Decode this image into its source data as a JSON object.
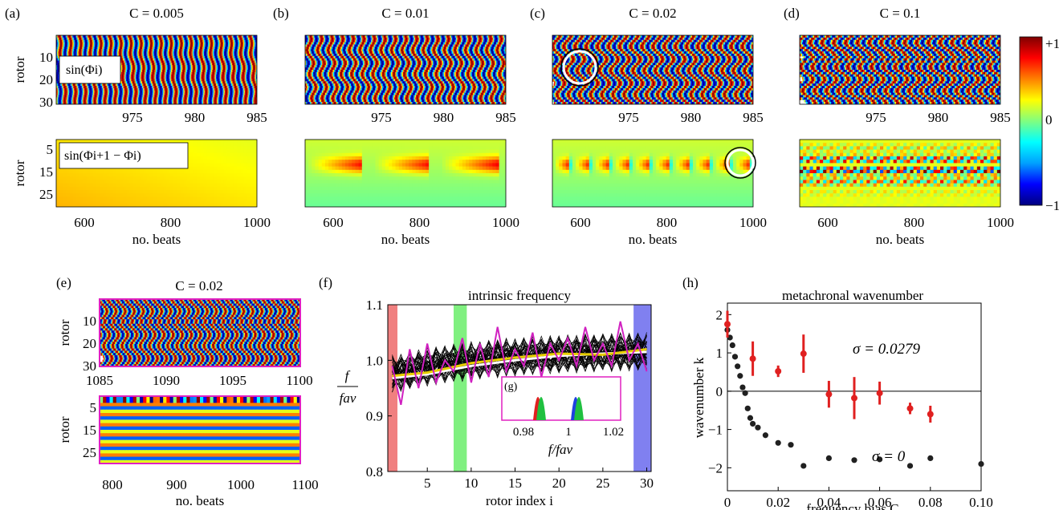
{
  "panel_labels": {
    "a": "(a)",
    "b": "(b)",
    "c": "(c)",
    "d": "(d)",
    "e": "(e)",
    "f": "(f)",
    "g": "(g)",
    "h": "(h)"
  },
  "colorbar": {
    "max_label": "+1",
    "mid_label": "0",
    "min_label": "−1",
    "stops": [
      "#00007f",
      "#0000ff",
      "#00a0ff",
      "#00ffff",
      "#80ff80",
      "#ffff00",
      "#ff8000",
      "#ff0000",
      "#7f0000"
    ]
  },
  "top_panels": [
    {
      "title": "C = 0.005",
      "coupling": 0.005,
      "upper_ylabel": "rotor",
      "lower_ylabel": "rotor",
      "upper_annotation": "sin(Φi)",
      "lower_annotation": "sin(Φi+1 − Φi)",
      "xlabel": "no. beats",
      "upper_xticks": [
        "975",
        "980",
        "985"
      ],
      "upper_yticks": [
        "10",
        "20",
        "30"
      ],
      "lower_xticks": [
        "600",
        "800",
        "1000"
      ],
      "lower_yticks": [
        "5",
        "15",
        "25"
      ]
    },
    {
      "title": "C = 0.01",
      "coupling": 0.01,
      "xlabel": "no. beats",
      "upper_xticks": [
        "975",
        "980",
        "985"
      ],
      "lower_xticks": [
        "600",
        "800",
        "1000"
      ]
    },
    {
      "title": "C = 0.02",
      "coupling": 0.02,
      "xlabel": "no. beats",
      "upper_xticks": [
        "975",
        "980",
        "985"
      ],
      "lower_xticks": [
        "600",
        "800",
        "1000"
      ]
    },
    {
      "title": "C = 0.1",
      "coupling": 0.1,
      "xlabel": "no. beats",
      "upper_xticks": [
        "975",
        "980",
        "985"
      ],
      "lower_xticks": [
        "600",
        "800",
        "1000"
      ]
    }
  ],
  "panel_e": {
    "title": "C = 0.02",
    "ylabel": "rotor",
    "xlabel": "no. beats",
    "upper_xticks": [
      "1085",
      "1090",
      "1095",
      "1100"
    ],
    "upper_yticks": [
      "10",
      "20",
      "30"
    ],
    "lower_xticks": [
      "800",
      "900",
      "1000",
      "1100"
    ],
    "lower_yticks": [
      "5",
      "15",
      "25"
    ],
    "frame_color": "#e020c0"
  },
  "panel_f": {
    "title": "intrinsic frequency",
    "xlabel": "rotor index i",
    "ylabel_num": "f",
    "ylabel_den": "fav",
    "xticks": [
      "5",
      "10",
      "15",
      "20",
      "25",
      "30"
    ],
    "yticks": [
      "0.8",
      "0.9",
      "1.0",
      "1.1"
    ],
    "highlight_colors": [
      "#f08080",
      "#80f080",
      "#8080f0"
    ]
  },
  "panel_g": {
    "label": "(g)",
    "xlabel": "f/fav",
    "xticks": [
      "0.98",
      "1",
      "1.02"
    ],
    "frame_color": "#e020c0"
  },
  "chart_data": [
    {
      "type": "heatmap",
      "panel": "a-upper",
      "title": "C = 0.005",
      "xlabel": "",
      "ylabel": "rotor",
      "xlim": [
        971,
        985
      ],
      "ylim": [
        1,
        30
      ],
      "quantity": "sin(Φi)",
      "range": [
        -1,
        1
      ]
    },
    {
      "type": "heatmap",
      "panel": "a-lower",
      "xlabel": "no. beats",
      "ylabel": "rotor",
      "xlim": [
        500,
        1000
      ],
      "ylim": [
        1,
        29
      ],
      "quantity": "sin(Φi+1 − Φi)",
      "range": [
        -1,
        1
      ]
    },
    {
      "type": "line",
      "panel": "f",
      "title": "intrinsic frequency",
      "xlabel": "rotor index i",
      "ylabel": "f/fav",
      "xlim": [
        0.5,
        30.5
      ],
      "ylim": [
        0.8,
        1.1
      ],
      "series": [
        {
          "color": "#ffffff",
          "x": [
            1,
            5,
            10,
            15,
            20,
            25,
            30
          ],
          "values": [
            0.968,
            0.975,
            0.99,
            1.0,
            1.008,
            1.012,
            1.015
          ]
        },
        {
          "color": "#e8d000",
          "x": [
            1,
            5,
            10,
            15,
            20,
            25,
            30
          ],
          "values": [
            0.972,
            0.978,
            0.995,
            1.005,
            1.012,
            1.01,
            1.02
          ]
        },
        {
          "color": "#d020c0",
          "x": [
            1,
            2,
            3,
            4,
            5,
            6,
            7,
            8,
            9,
            10,
            11,
            12,
            13,
            14,
            15,
            16,
            17,
            18,
            19,
            20,
            21,
            22,
            23,
            24,
            25,
            26,
            27,
            28,
            29,
            30
          ],
          "values": [
            0.99,
            0.92,
            1.02,
            0.95,
            1.03,
            0.96,
            1.0,
            0.98,
            1.04,
            0.96,
            1.03,
            0.97,
            1.06,
            0.98,
            1.02,
            0.99,
            1.05,
            0.97,
            1.03,
            1.0,
            1.04,
            0.99,
            1.06,
            1.0,
            1.03,
            0.99,
            1.07,
            1.0,
            1.03,
            0.98
          ]
        }
      ]
    },
    {
      "type": "scatter",
      "panel": "h",
      "title": "metachronal wavenumber",
      "xlabel": "frequency bias C",
      "ylabel": "wavenumber k",
      "xlim": [
        0,
        0.1
      ],
      "ylim": [
        -2.6,
        2.3
      ],
      "xticks": [
        0,
        0.02,
        0.04,
        0.06,
        0.08,
        0.1
      ],
      "yticks": [
        -2,
        -1,
        0,
        1,
        2
      ],
      "series": [
        {
          "name": "σ = 0.0279",
          "color": "#e02020",
          "x": [
            0,
            0.01,
            0.02,
            0.03,
            0.04,
            0.05,
            0.06,
            0.072,
            0.08
          ],
          "values": [
            1.75,
            0.85,
            0.52,
            0.98,
            -0.08,
            -0.18,
            -0.05,
            -0.45,
            -0.6
          ],
          "err": [
            0.35,
            0.45,
            0.15,
            0.5,
            0.35,
            0.55,
            0.3,
            0.15,
            0.22
          ]
        },
        {
          "name": "σ = 0",
          "color": "#202020",
          "x": [
            0,
            0.001,
            0.002,
            0.003,
            0.004,
            0.005,
            0.006,
            0.007,
            0.008,
            0.009,
            0.01,
            0.012,
            0.015,
            0.02,
            0.025,
            0.03,
            0.04,
            0.05,
            0.06,
            0.072,
            0.08,
            0.1
          ],
          "values": [
            1.6,
            1.4,
            1.2,
            0.9,
            0.65,
            0.4,
            0.1,
            -0.05,
            -0.45,
            -0.7,
            -0.85,
            -0.95,
            -1.15,
            -1.35,
            -1.4,
            -1.95,
            -1.75,
            -1.8,
            -1.78,
            -1.95,
            -1.75,
            -1.9
          ]
        }
      ]
    }
  ],
  "panel_h": {
    "label_red": "σ = 0.0279",
    "label_black": "σ = 0"
  }
}
